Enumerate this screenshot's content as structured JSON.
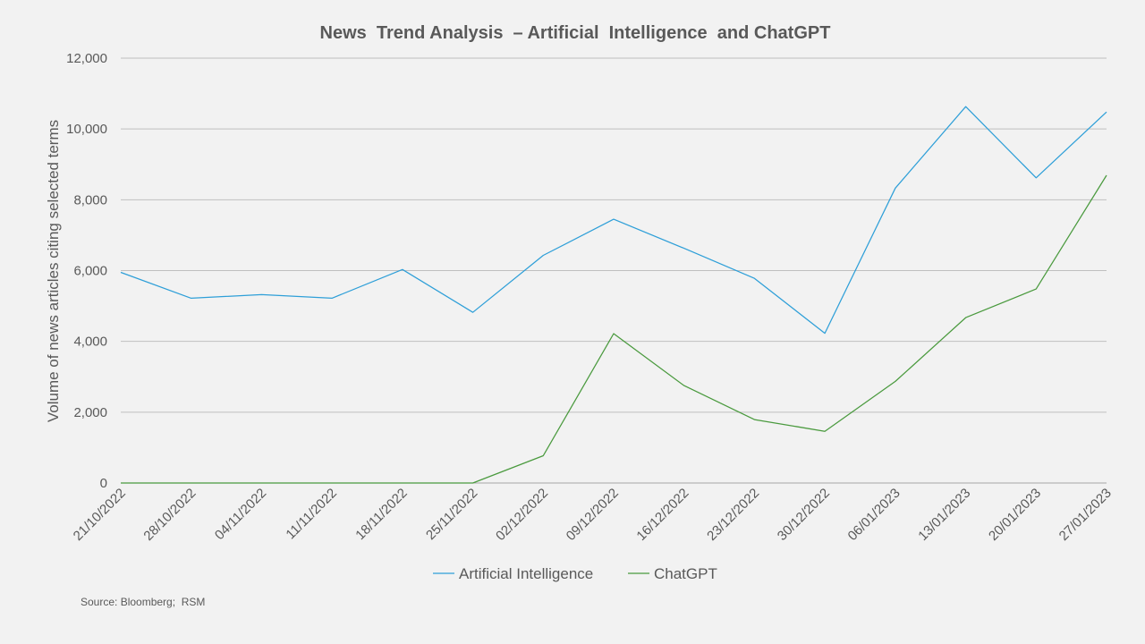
{
  "chart_data": {
    "type": "line",
    "title": "News  Trend Analysis  – Artificial  Intelligence  and ChatGPT",
    "xlabel": "",
    "ylabel": "Volume of news articles citing selected terms",
    "ylim": [
      0,
      12000
    ],
    "yticks": [
      0,
      2000,
      4000,
      6000,
      8000,
      10000,
      12000
    ],
    "ytick_labels": [
      "0",
      "2,000",
      "4,000",
      "6,000",
      "8,000",
      "10,000",
      "12,000"
    ],
    "grid": true,
    "legend_position": "bottom",
    "categories": [
      "21/10/2022",
      "28/10/2022",
      "04/11/2022",
      "11/11/2022",
      "18/11/2022",
      "25/11/2022",
      "02/12/2022",
      "09/12/2022",
      "16/12/2022",
      "23/12/2022",
      "30/12/2022",
      "06/01/2023",
      "13/01/2023",
      "20/01/2023",
      "27/01/2023"
    ],
    "series": [
      {
        "name": "Artificial Intelligence",
        "color": "#2e9fd8",
        "values": [
          5950,
          5220,
          5320,
          5220,
          6030,
          4820,
          6430,
          7450,
          6630,
          5780,
          4230,
          8330,
          10630,
          8620,
          10480
        ]
      },
      {
        "name": "ChatGPT",
        "color": "#4a9a3e",
        "values": [
          0,
          0,
          0,
          0,
          0,
          0,
          770,
          4220,
          2750,
          1790,
          1460,
          2870,
          4670,
          5480,
          8690
        ]
      }
    ]
  },
  "source": "Source: Bloomberg;  RSM"
}
